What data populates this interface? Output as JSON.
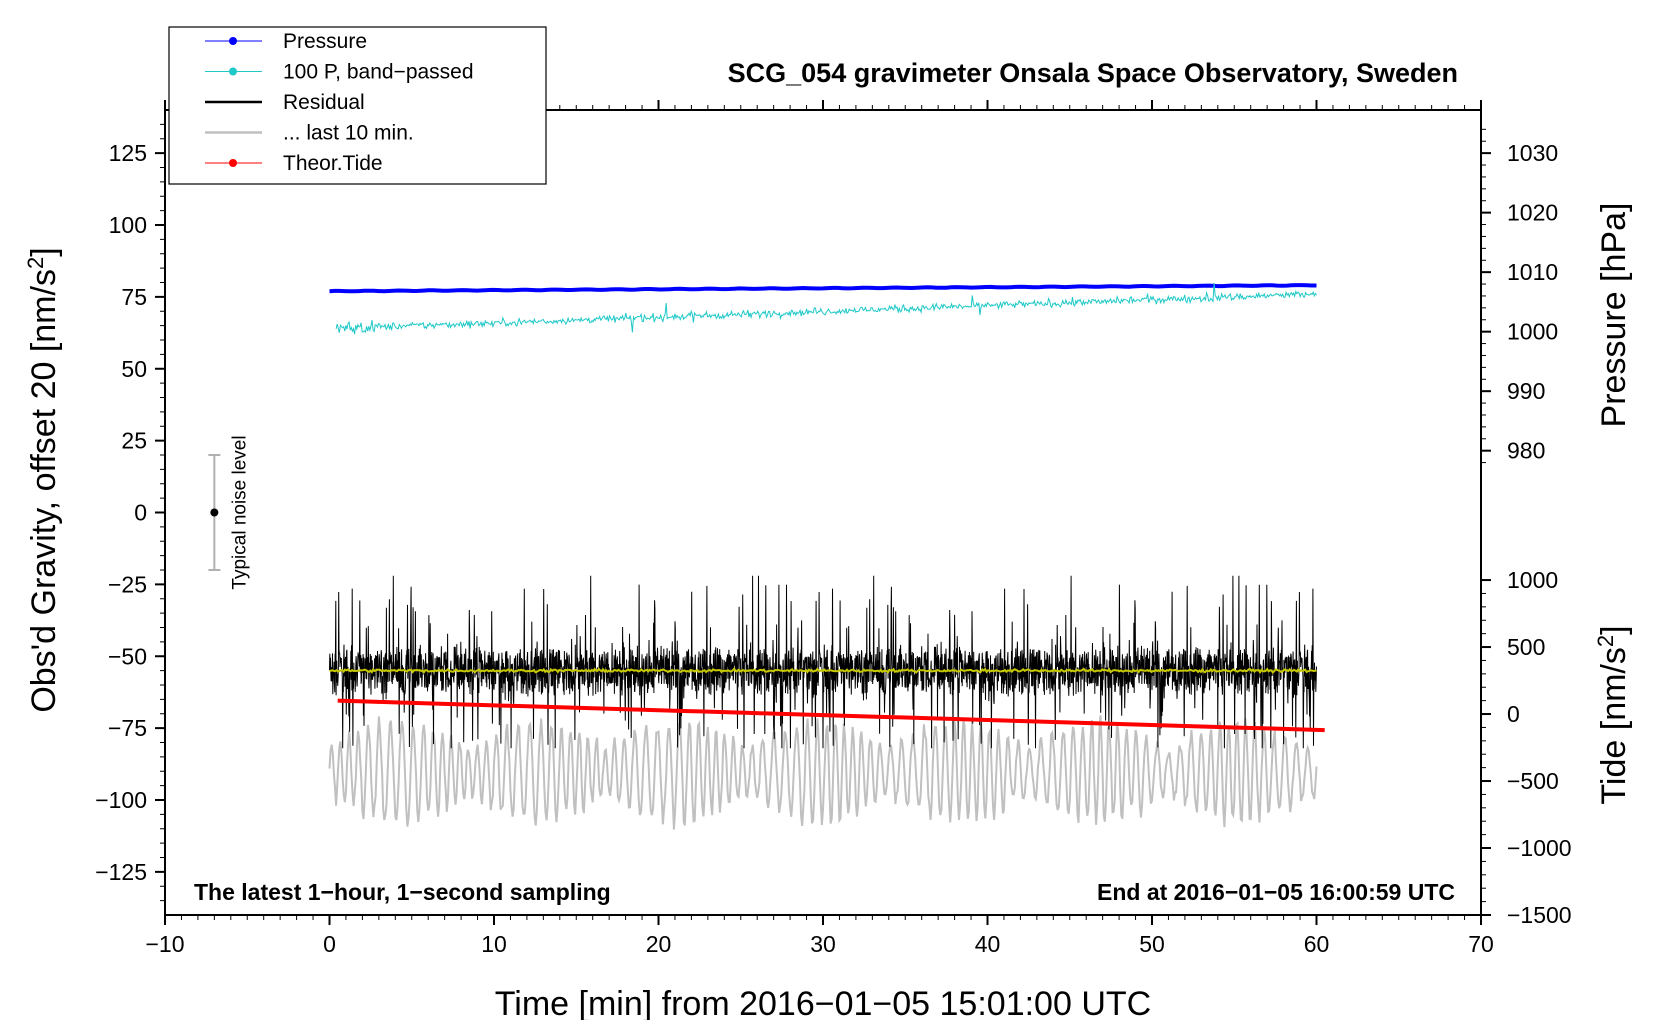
{
  "chart_data": {
    "type": "line",
    "title": "SCG_054 gravimeter Onsala Space Observatory, Sweden",
    "xlabel": "Time [min] from 2016−01−05 15:01:00 UTC",
    "ylabel_left": "Obs'd Gravity, offset 20 [nm/s",
    "ylabel_left_unit_suffix": "]",
    "ylabel_right_pressure": "Pressure [hPa]",
    "ylabel_right_tide": "Tide [nm/s",
    "ylabel_right_tide_suffix": "]",
    "unit_superscript": "2",
    "xlim": [
      -10,
      70
    ],
    "ylim_left": [
      -140,
      140
    ],
    "x_ticks": [
      -10,
      0,
      10,
      20,
      30,
      40,
      50,
      60,
      70
    ],
    "x_tick_labels": [
      "−10",
      "0",
      "10",
      "20",
      "30",
      "40",
      "50",
      "60",
      "70"
    ],
    "y_ticks_left": [
      125,
      100,
      75,
      50,
      25,
      0,
      -25,
      -50,
      -75,
      -100,
      -125
    ],
    "y_tick_labels_left": [
      "125",
      "100",
      "75",
      "50",
      "25",
      "0",
      "−25",
      "−50",
      "−75",
      "−100",
      "−125"
    ],
    "pressure_ticks": [
      1030,
      1020,
      1010,
      1000,
      990,
      980
    ],
    "pressure_tick_labels": [
      "1030",
      "1020",
      "1010",
      "1000",
      "990",
      "980"
    ],
    "pressure_axis_map": {
      "p1": 1030,
      "y1": 125,
      "p2": 980,
      "y2": 21.5
    },
    "tide_ticks": [
      1000,
      500,
      0,
      -500,
      -1000,
      -1500
    ],
    "tide_tick_labels": [
      "1000",
      "500",
      "0",
      "−500",
      "−1000",
      "−1500"
    ],
    "tide_axis_map": {
      "t1": 1000,
      "y1": -23.5,
      "t2": -1500,
      "y2": -140
    },
    "annotations": {
      "left": "The latest 1−hour, 1−second sampling",
      "right": "End at 2016−01−05 16:00:59 UTC",
      "noise_label": "Typical noise level"
    },
    "noise_bar": {
      "x": -7,
      "center": 0,
      "low": -20,
      "high": 20
    },
    "legend": [
      {
        "label": "Pressure",
        "color": "#0000ff",
        "marker": true,
        "width": 1
      },
      {
        "label": "100 P, band−passed",
        "color": "#20c8c8",
        "marker": true,
        "width": 1
      },
      {
        "label": "Residual",
        "color": "#000000",
        "marker": false,
        "width": 2.5
      },
      {
        "label": "... last 10 min.",
        "color": "#c0c0c0",
        "marker": false,
        "width": 2.5
      },
      {
        "label": "Theor.Tide",
        "color": "#ff0000",
        "marker": true,
        "width": 1
      }
    ],
    "series": [
      {
        "name": "Pressure",
        "color": "#0000ff",
        "axis": "pressure",
        "x_start": 0,
        "x_end": 60,
        "start_value": 1006.8,
        "end_value": 1007.8
      },
      {
        "name": "100 P, band−passed",
        "color": "#20c8c8",
        "axis": "left",
        "x_start": 0.4,
        "x_end": 60,
        "start_value": 64,
        "end_value": 76,
        "noise": 2.2
      },
      {
        "name": "Residual",
        "color": "#000000",
        "axis": "left",
        "x_start": 0,
        "x_end": 60,
        "center": -55,
        "typical_min": -70,
        "typical_max": -35,
        "peak_max": -22,
        "peak_min": -82
      },
      {
        "name": "Smoothed residual",
        "color": "#c8c800",
        "axis": "left",
        "x_start": 0,
        "x_end": 60,
        "center": -55
      },
      {
        "name": "... last 10 min.",
        "color": "#c0c0c0",
        "axis": "left",
        "x_start": 0,
        "x_end": 60,
        "center": -90,
        "min": -112,
        "max": -70
      },
      {
        "name": "Theor.Tide",
        "color": "#ff0000",
        "axis": "tide",
        "x_start": 0.5,
        "x_end": 60.5,
        "start_value": 100,
        "end_value": -120
      }
    ]
  },
  "colors": {
    "pressure": "#0000ff",
    "bandpassed": "#20c8c8",
    "residual": "#000000",
    "smoothed": "#c8c800",
    "last10": "#c0c0c0",
    "tide": "#ff0000",
    "noise_bar": "#b0b0b0"
  }
}
